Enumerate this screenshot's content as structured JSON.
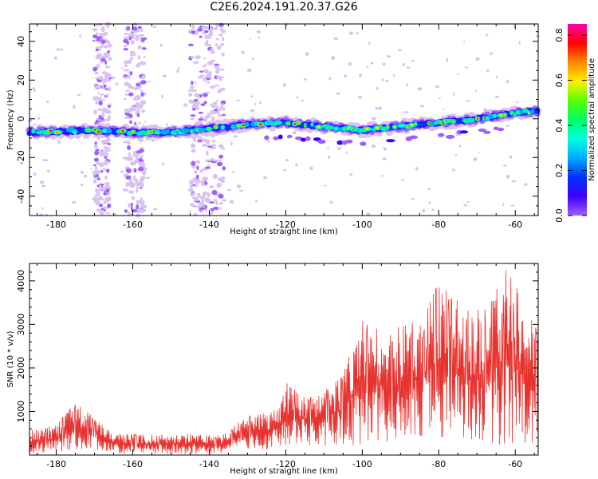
{
  "title": "C2E6.2024.191.20.37.G26",
  "colors": {
    "snr_line": "#e8322f",
    "frame": "#000000",
    "colormap": [
      "#ffffff",
      "#d9c3f2",
      "#a060ff",
      "#3c00ff",
      "#0033ff",
      "#00aaff",
      "#00ffdd",
      "#00ff66",
      "#55ff00",
      "#ffee00",
      "#ff8800",
      "#ff0000",
      "#ff00aa"
    ]
  },
  "chart_data": [
    {
      "type": "heatmap",
      "xlabel": "Height of straight line (km)",
      "ylabel": "Frequency (Hz)",
      "xlim": [
        -187,
        -54
      ],
      "ylim": [
        -50,
        49
      ],
      "xticks": [
        -180,
        -160,
        -140,
        -120,
        -100,
        -80,
        -60
      ],
      "yticks": [
        -40,
        -20,
        0,
        20,
        40
      ],
      "ridge": [
        {
          "x": -187,
          "f": -7
        },
        {
          "x": -170,
          "f": -6
        },
        {
          "x": -160,
          "f": -7
        },
        {
          "x": -150,
          "f": -7
        },
        {
          "x": -140,
          "f": -5
        },
        {
          "x": -130,
          "f": -3
        },
        {
          "x": -120,
          "f": -2
        },
        {
          "x": -110,
          "f": -4
        },
        {
          "x": -100,
          "f": -6
        },
        {
          "x": -90,
          "f": -4
        },
        {
          "x": -80,
          "f": -2
        },
        {
          "x": -70,
          "f": 0
        },
        {
          "x": -60,
          "f": 3
        },
        {
          "x": -55,
          "f": 4
        }
      ],
      "colorbar": {
        "label": "Normalized spectral amplitude",
        "range": [
          0,
          0.85
        ],
        "ticks": [
          0.0,
          0.2,
          0.4,
          0.6,
          0.8
        ]
      }
    },
    {
      "type": "line",
      "xlabel": "Height of straight line (km)",
      "ylabel": "SNR (10 * v/v)",
      "xlim": [
        -187,
        -54
      ],
      "ylim": [
        0,
        4400
      ],
      "xticks": [
        -180,
        -160,
        -140,
        -120,
        -100,
        -80,
        -60
      ],
      "yticks": [
        1000,
        2000,
        3000,
        4000
      ],
      "series": [
        {
          "envelope": [
            {
              "x": -187,
              "lo": 20,
              "hi": 600
            },
            {
              "x": -180,
              "lo": 50,
              "hi": 700
            },
            {
              "x": -175,
              "lo": 100,
              "hi": 1250
            },
            {
              "x": -170,
              "lo": 80,
              "hi": 900
            },
            {
              "x": -165,
              "lo": 30,
              "hi": 500
            },
            {
              "x": -155,
              "lo": 20,
              "hi": 480
            },
            {
              "x": -145,
              "lo": 20,
              "hi": 500
            },
            {
              "x": -137,
              "lo": 20,
              "hi": 450
            },
            {
              "x": -130,
              "lo": 100,
              "hi": 900
            },
            {
              "x": -122,
              "lo": 150,
              "hi": 1050
            },
            {
              "x": -120,
              "lo": 200,
              "hi": 1700
            },
            {
              "x": -112,
              "lo": 200,
              "hi": 1300
            },
            {
              "x": -105,
              "lo": 250,
              "hi": 1900
            },
            {
              "x": -100,
              "lo": 200,
              "hi": 3100
            },
            {
              "x": -92,
              "lo": 300,
              "hi": 2900
            },
            {
              "x": -85,
              "lo": 400,
              "hi": 3100
            },
            {
              "x": -80,
              "lo": 400,
              "hi": 3950
            },
            {
              "x": -72,
              "lo": 300,
              "hi": 3300
            },
            {
              "x": -66,
              "lo": 250,
              "hi": 3600
            },
            {
              "x": -62,
              "lo": 200,
              "hi": 4350
            },
            {
              "x": -58,
              "lo": 150,
              "hi": 3500
            },
            {
              "x": -54,
              "lo": 100,
              "hi": 3000
            }
          ]
        }
      ]
    }
  ]
}
